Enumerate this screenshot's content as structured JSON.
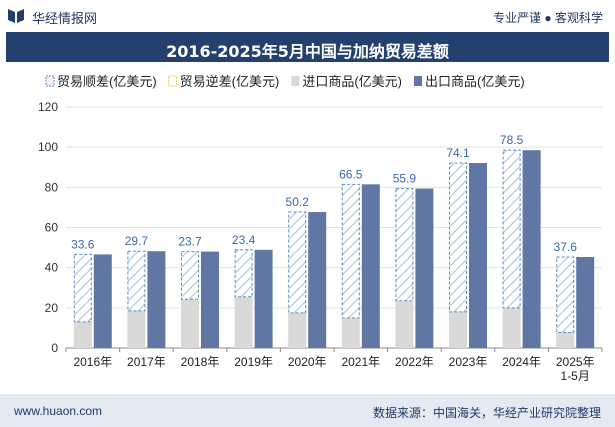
{
  "header": {
    "brand": "华经情报网",
    "tagline": "专业严谨 ● 客观科学"
  },
  "title": "2016-2025年5月中国与加纳贸易差额",
  "footer": {
    "site": "www.huaon.com",
    "source": "数据来源：中国海关，华经产业研究院整理"
  },
  "chart_data": {
    "type": "bar",
    "title": "2016-2025年5月中国与加纳贸易差额",
    "categories": [
      "2016年",
      "2017年",
      "2018年",
      "2019年",
      "2020年",
      "2021年",
      "2022年",
      "2023年",
      "2024年",
      "2025年\n1-5月"
    ],
    "series": [
      {
        "name": "贸易顺差(亿美元)",
        "values": [
          33.6,
          29.7,
          23.7,
          23.4,
          50.2,
          66.5,
          55.9,
          74.1,
          78.5,
          37.6
        ]
      },
      {
        "name": "贸易逆差(亿美元)",
        "values": [
          0,
          0,
          0,
          0,
          0,
          0,
          0,
          0,
          0,
          0
        ]
      },
      {
        "name": "进口商品(亿美元)",
        "values": [
          13.0,
          18.5,
          24.3,
          25.5,
          17.5,
          15.0,
          23.5,
          18.0,
          20.0,
          7.7
        ]
      },
      {
        "name": "出口商品(亿美元)",
        "values": [
          46.6,
          48.2,
          48.0,
          48.9,
          67.7,
          81.5,
          79.4,
          92.1,
          98.5,
          45.3
        ]
      }
    ],
    "data_labels": [
      "33.6",
      "29.7",
      "23.7",
      "23.4",
      "50.2",
      "66.5",
      "55.9",
      "74.1",
      "78.5",
      "37.6"
    ],
    "y_ticks": [
      "0",
      "20",
      "40",
      "60",
      "80",
      "100",
      "120"
    ],
    "ylim": [
      0,
      120
    ],
    "legend_position": "top",
    "colors": {
      "surplus_stroke": "#5b8fc0",
      "surplus_hatch": "#a9c3da",
      "deficit": "#f2c94c",
      "import": "#d9d9d9",
      "export": "#6077a3",
      "label": "#3a68a8"
    }
  }
}
